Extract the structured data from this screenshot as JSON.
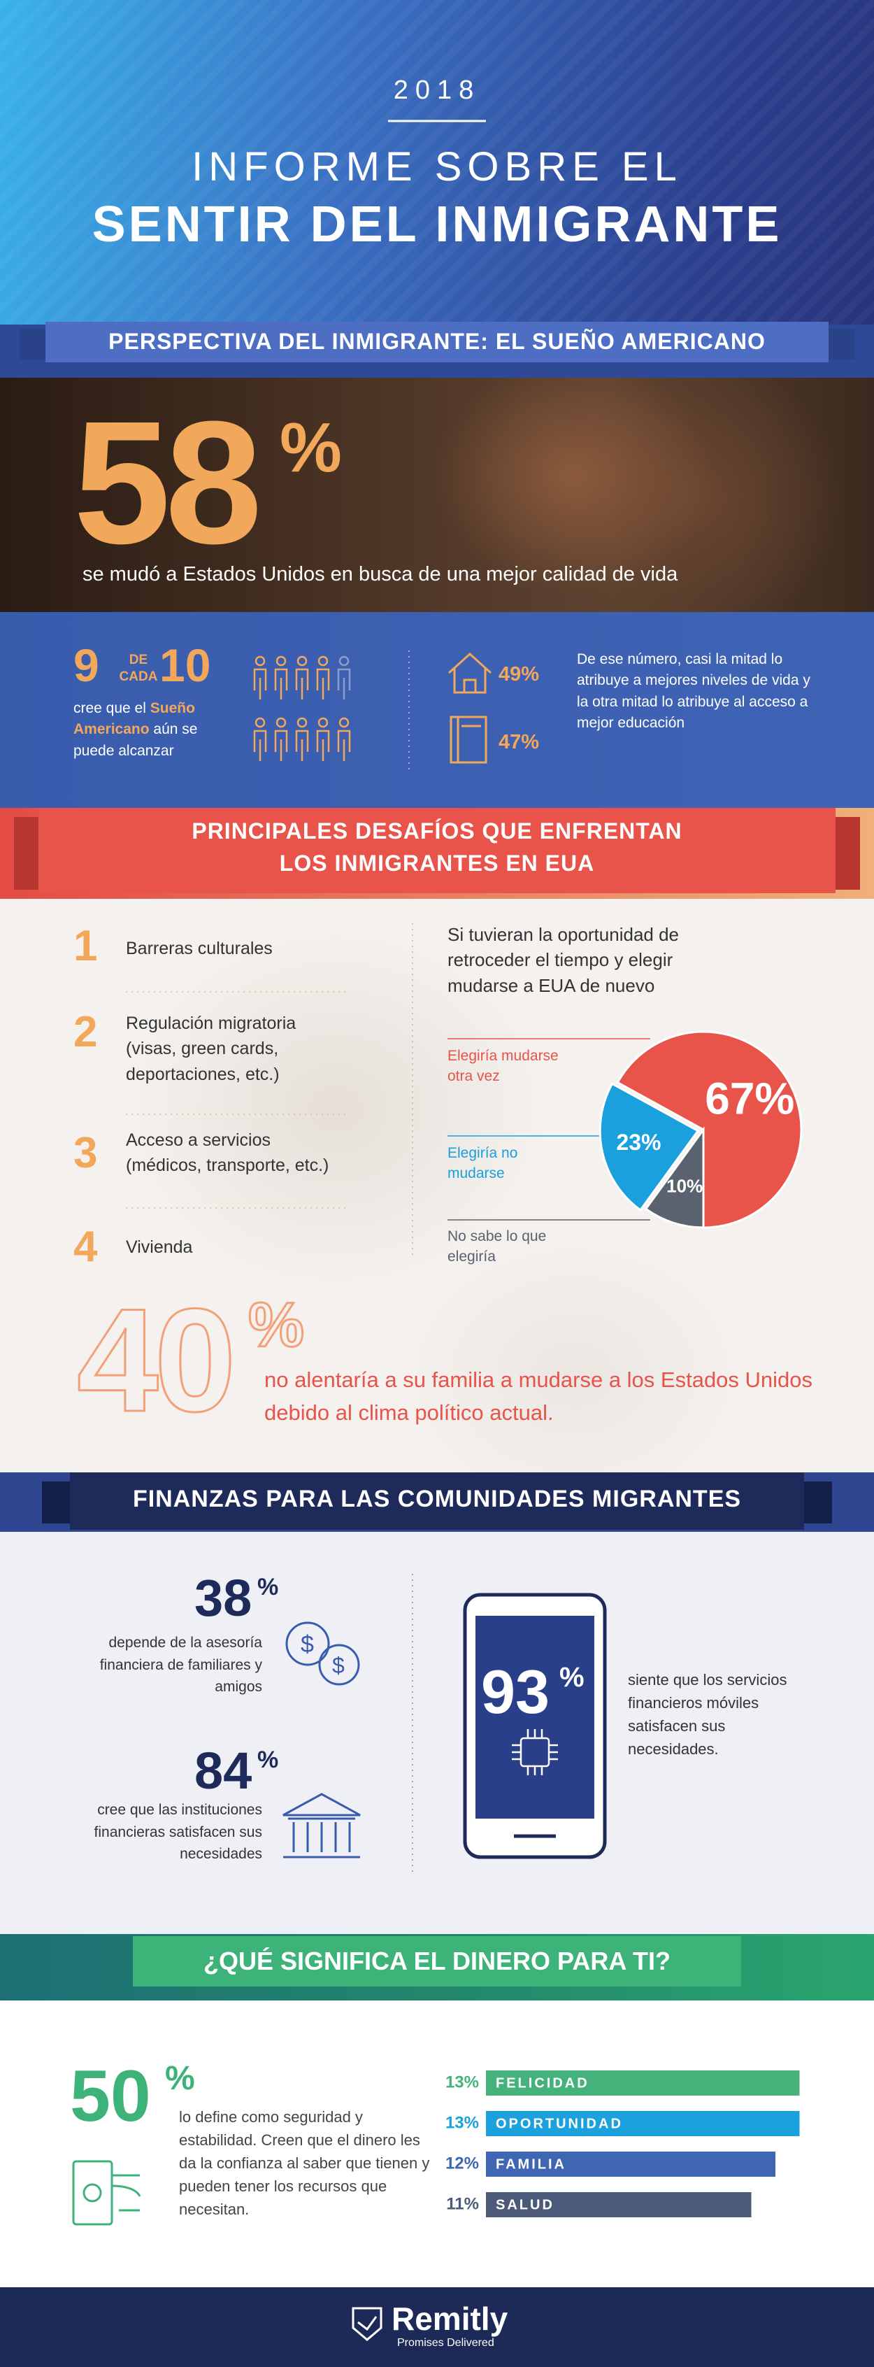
{
  "header": {
    "year": "2018",
    "title_line1": "INFORME SOBRE EL",
    "title_line2": "SENTIR DEL INMIGRANTE"
  },
  "section1": {
    "banner": "PERSPECTIVA DEL INMIGRANTE: EL SUEÑO AMERICANO",
    "big_number": "58",
    "big_unit": "%",
    "caption": "se mudó a Estados Unidos en busca de una mejor calidad de vida",
    "ratio": {
      "part": "9",
      "de": "DE",
      "cada": "CADA",
      "whole": "10",
      "caption_before": "cree que el",
      "caption_highlight": "Sueño Americano",
      "caption_after": "aún se puede alcanzar"
    },
    "reasons": [
      "49%",
      "47%"
    ],
    "note": "De ese número, casi la mitad lo atribuye a mejores niveles de vida y la otra mitad lo atribuye al acceso a mejor educación"
  },
  "section2": {
    "banner_line1": "PRINCIPALES DESAFÍOS QUE ENFRENTAN",
    "banner_line2": "LOS INMIGRANTES EN EUA",
    "challenges": [
      {
        "number": "1",
        "text": "Barreras culturales"
      },
      {
        "number": "2",
        "text": "Regulación migratoria (visas, green cards, deportaciones, etc.)"
      },
      {
        "number": "3",
        "text": "Acceso a servicios (médicos, transporte, etc.)"
      },
      {
        "number": "4",
        "text": "Vivienda"
      }
    ],
    "question": "Si tuvieran la oportunidad de retroceder el tiempo y elegir mudarse a EUA de nuevo",
    "pie": {
      "type": "pie",
      "categories": [
        "Elegiría mudarse otra vez",
        "Elegiría no mudarse",
        "No sabe lo que elegiría"
      ],
      "values": [
        67,
        23,
        10
      ],
      "value_labels": [
        "67%",
        "23%",
        "10%"
      ],
      "colors": [
        "#e8534a",
        "#1aa0dc",
        "#5a6270"
      ]
    },
    "big_number": "40",
    "big_unit": "%",
    "caption": "no alentaría a su familia a mudarse a los Estados Unidos debido al clima político actual."
  },
  "section3": {
    "banner": "FINANZAS PARA LAS COMUNIDADES MIGRANTES",
    "stats": [
      {
        "number": "38",
        "unit": "%",
        "text": "depende de la asesoría financiera de familiares y amigos"
      },
      {
        "number": "84",
        "unit": "%",
        "text": "cree que las instituciones financieras satisfacen sus necesidades"
      }
    ],
    "mobile": {
      "number": "93",
      "unit": "%",
      "text": "siente que los servicios financieros móviles satisfacen sus necesidades."
    }
  },
  "section4": {
    "banner": "¿QUÉ SIGNIFICA EL DINERO PARA TI?",
    "big_number": "50",
    "big_unit": "%",
    "caption": "lo define como seguridad y estabilidad. Creen que el dinero les da la confianza al saber que tienen y pueden tener los recursos que necesitan.",
    "bars": {
      "type": "bar",
      "categories": [
        "FELICIDAD",
        "OPORTUNIDAD",
        "FAMILIA",
        "SALUD"
      ],
      "values": [
        13,
        13,
        12,
        11
      ],
      "value_labels": [
        "13%",
        "13%",
        "12%",
        "11%"
      ],
      "colors": [
        "#45b27c",
        "#1ba1dc",
        "#3e66b3",
        "#4a5a78"
      ]
    }
  },
  "footer": {
    "brand": "Remitly",
    "tagline": "Promises Delivered"
  }
}
